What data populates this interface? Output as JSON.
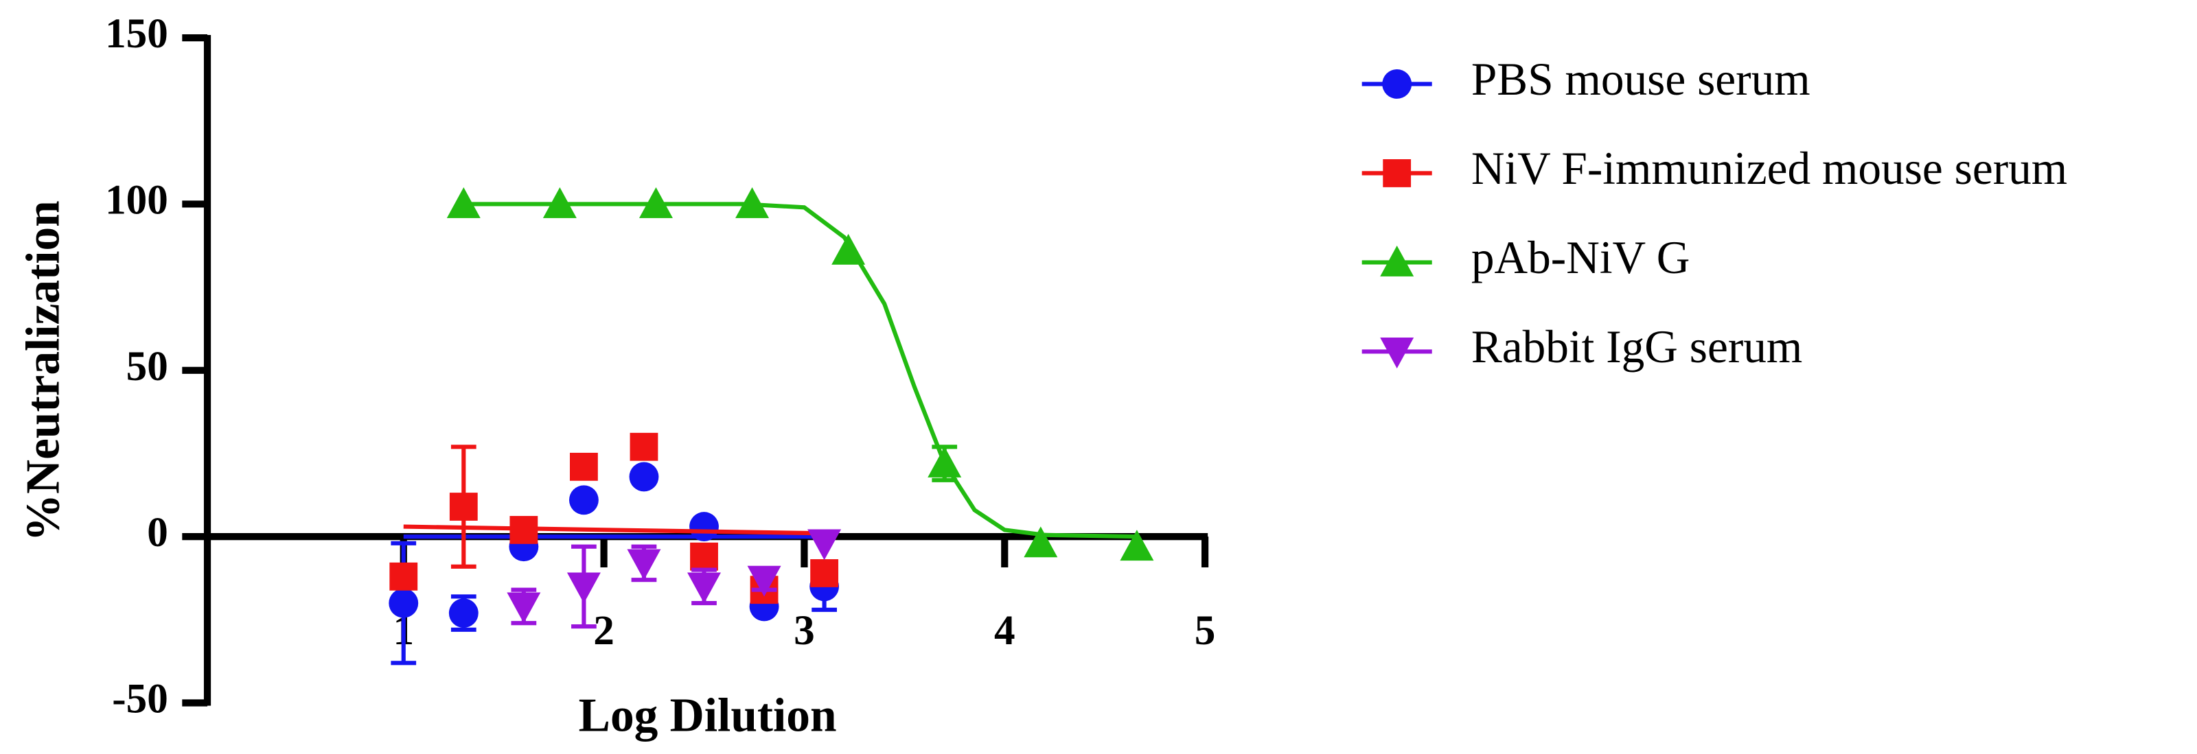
{
  "chart_data": {
    "type": "scatter",
    "x_label": "Log Dilution",
    "y_label": "%Neutralization",
    "xlim": [
      0,
      5
    ],
    "xticks": [
      1,
      2,
      3,
      4,
      5
    ],
    "ylim": [
      -50,
      150
    ],
    "yticks": [
      -50,
      0,
      50,
      100,
      150
    ],
    "legend": "right",
    "series": [
      {
        "name": "PBS mouse serum",
        "color": "#1414f0",
        "marker": "circle",
        "x": [
          1.0,
          1.3,
          1.6,
          1.9,
          2.2,
          2.5,
          2.8,
          3.1
        ],
        "values": [
          -20,
          -23,
          -3,
          11,
          18,
          3,
          -21,
          -15
        ],
        "errors": [
          18,
          5,
          null,
          null,
          null,
          null,
          null,
          7
        ],
        "curve": {
          "x": [
            1.0,
            3.1
          ],
          "y": [
            0,
            0
          ]
        }
      },
      {
        "name": "NiV F-immunized mouse serum",
        "color": "#f01414",
        "marker": "square",
        "x": [
          1.0,
          1.3,
          1.6,
          1.9,
          2.2,
          2.5,
          2.8,
          3.1
        ],
        "values": [
          -12,
          9,
          2,
          21,
          27,
          -6,
          -16,
          -11
        ],
        "errors": [
          3,
          18,
          null,
          null,
          null,
          null,
          3,
          3
        ],
        "curve": {
          "x": [
            1.0,
            3.1
          ],
          "y": [
            3,
            1
          ]
        }
      },
      {
        "name": "pAb-NiV G",
        "color": "#22bb11",
        "marker": "triangle",
        "x": [
          1.3,
          1.78,
          2.26,
          2.74,
          3.22,
          3.7,
          4.18,
          4.66
        ],
        "values": [
          100,
          100,
          100,
          100,
          86,
          22,
          -2,
          -3
        ],
        "errors": [
          null,
          null,
          null,
          null,
          null,
          5,
          null,
          null
        ],
        "curve": {
          "x": [
            1.3,
            2.7,
            3.0,
            3.2,
            3.4,
            3.55,
            3.7,
            3.85,
            4.0,
            4.2,
            4.66
          ],
          "y": [
            100,
            100,
            99,
            90,
            70,
            45,
            22,
            8,
            2,
            0.5,
            0
          ]
        }
      },
      {
        "name": "Rabbit IgG serum",
        "color": "#9a14dc",
        "marker": "triangle-down",
        "x": [
          1.6,
          1.9,
          2.2,
          2.5,
          2.8,
          3.1
        ],
        "values": [
          -21,
          -15,
          -8,
          -15,
          -13,
          -2
        ],
        "errors": [
          5,
          12,
          5,
          5,
          3,
          null
        ]
      }
    ]
  }
}
